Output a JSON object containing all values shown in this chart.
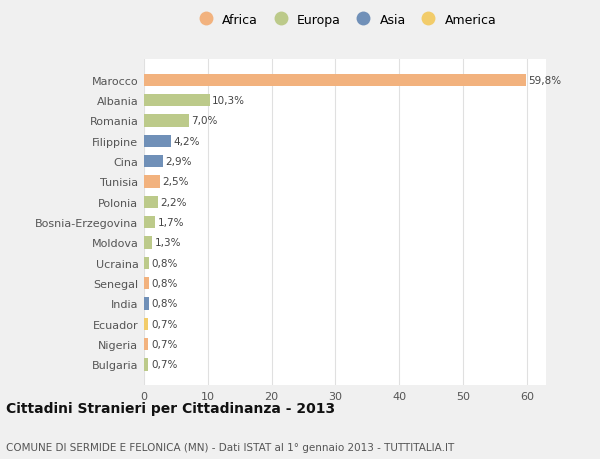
{
  "categories": [
    "Marocco",
    "Albania",
    "Romania",
    "Filippine",
    "Cina",
    "Tunisia",
    "Polonia",
    "Bosnia-Erzegovina",
    "Moldova",
    "Ucraina",
    "Senegal",
    "India",
    "Ecuador",
    "Nigeria",
    "Bulgaria"
  ],
  "values": [
    59.8,
    10.3,
    7.0,
    4.2,
    2.9,
    2.5,
    2.2,
    1.7,
    1.3,
    0.8,
    0.8,
    0.8,
    0.7,
    0.7,
    0.7
  ],
  "labels": [
    "59,8%",
    "10,3%",
    "7,0%",
    "4,2%",
    "2,9%",
    "2,5%",
    "2,2%",
    "1,7%",
    "1,3%",
    "0,8%",
    "0,8%",
    "0,8%",
    "0,7%",
    "0,7%",
    "0,7%"
  ],
  "continents": [
    "Africa",
    "Europa",
    "Europa",
    "Asia",
    "Asia",
    "Africa",
    "Europa",
    "Europa",
    "Europa",
    "Europa",
    "Africa",
    "Asia",
    "America",
    "Africa",
    "Europa"
  ],
  "colors": {
    "Africa": "#F2B27E",
    "Europa": "#BCCA8A",
    "Asia": "#7090B8",
    "America": "#F2CC6A"
  },
  "legend_order": [
    "Africa",
    "Europa",
    "Asia",
    "America"
  ],
  "title": "Cittadini Stranieri per Cittadinanza - 2013",
  "subtitle": "COMUNE DI SERMIDE E FELONICA (MN) - Dati ISTAT al 1° gennaio 2013 - TUTTITALIA.IT",
  "xlim": [
    0,
    63
  ],
  "xticks": [
    0,
    10,
    20,
    30,
    40,
    50,
    60
  ],
  "background_color": "#f0f0f0",
  "plot_background": "#ffffff",
  "grid_color": "#e0e0e0",
  "bar_height": 0.6
}
